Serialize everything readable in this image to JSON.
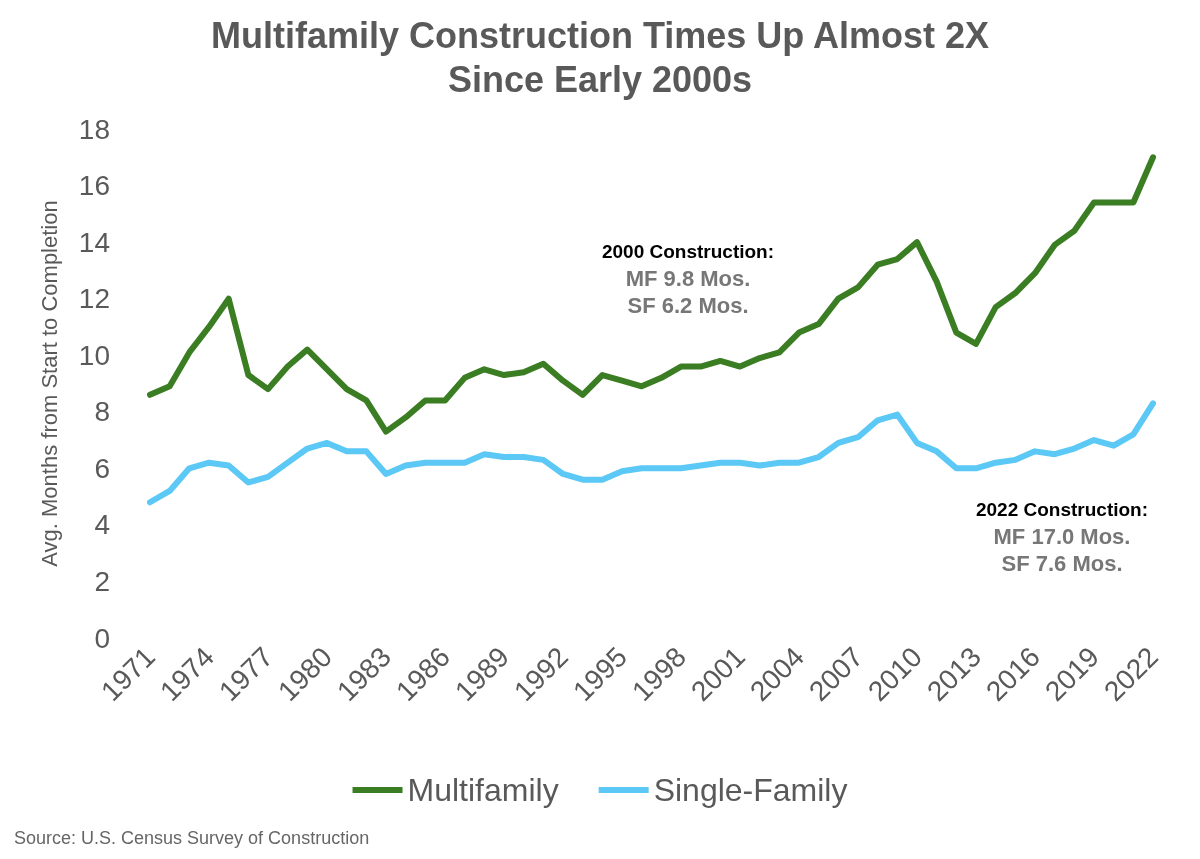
{
  "chart_data": {
    "type": "line",
    "title": "Multifamily Construction Times Up Almost 2X\nSince Early 2000s",
    "ylabel": "Avg. Months from Start to Completion",
    "categories": [
      "1971",
      null,
      null,
      "1974",
      null,
      null,
      "1977",
      null,
      null,
      "1980",
      null,
      null,
      "1983",
      null,
      null,
      "1986",
      null,
      null,
      "1989",
      null,
      null,
      "1992",
      null,
      null,
      "1995",
      null,
      null,
      "1998",
      null,
      null,
      "2001",
      null,
      null,
      "2004",
      null,
      null,
      "2007",
      null,
      null,
      "2010",
      null,
      null,
      "2013",
      null,
      null,
      "2016",
      null,
      null,
      "2019",
      null,
      null,
      "2022"
    ],
    "series": [
      {
        "name": "Multifamily",
        "color": "#3a7d22",
        "values": [
          8.6,
          8.9,
          10.1,
          11.0,
          12.0,
          9.3,
          8.8,
          9.6,
          10.2,
          9.5,
          8.8,
          8.4,
          7.3,
          7.8,
          8.4,
          8.4,
          9.2,
          9.5,
          9.3,
          9.4,
          9.7,
          9.1,
          8.6,
          9.3,
          9.1,
          8.9,
          9.2,
          9.6,
          9.6,
          9.8,
          9.6,
          9.9,
          10.1,
          10.8,
          11.1,
          12.0,
          12.4,
          13.2,
          13.4,
          14.0,
          12.6,
          10.8,
          10.4,
          11.7,
          12.2,
          12.9,
          13.9,
          14.4,
          15.4,
          15.4,
          15.4,
          17.0
        ]
      },
      {
        "name": "Single-Family",
        "color": "#5bc8f5",
        "values": [
          4.8,
          5.2,
          6.0,
          6.2,
          6.1,
          5.5,
          5.7,
          6.2,
          6.7,
          6.9,
          6.6,
          6.6,
          5.8,
          6.1,
          6.2,
          6.2,
          6.2,
          6.5,
          6.4,
          6.4,
          6.3,
          5.8,
          5.6,
          5.6,
          5.9,
          6.0,
          6.0,
          6.0,
          6.1,
          6.2,
          6.2,
          6.1,
          6.2,
          6.2,
          6.4,
          6.9,
          7.1,
          7.7,
          7.9,
          6.9,
          6.6,
          6.0,
          6.0,
          6.2,
          6.3,
          6.6,
          6.5,
          6.7,
          7.0,
          6.8,
          7.2,
          8.3
        ]
      }
    ],
    "ylim": [
      0,
      18
    ],
    "yticks": [
      0,
      2,
      4,
      6,
      8,
      10,
      12,
      14,
      16,
      18
    ],
    "grid": false,
    "legend": "bottom",
    "marker": "none",
    "line_style": "solid",
    "annotations": [
      "2000 Construction:\nMF 9.8 Mos.\nSF 6.2 Mos.",
      "2022 Construction:\nMF 17.0 Mos.\nSF 7.6 Mos.",
      "Source: U.S. Census Survey of Construction"
    ]
  }
}
